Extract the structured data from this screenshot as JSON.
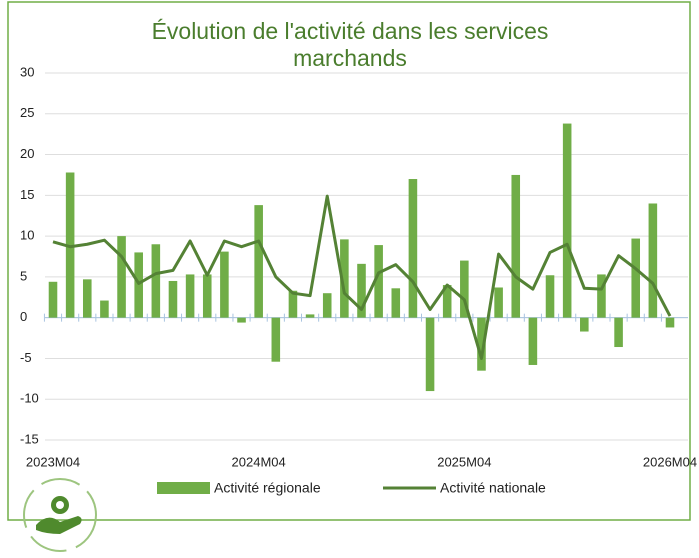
{
  "chart_data": {
    "type": "bar_line",
    "title": "Évolution de l'activité dans les services marchands",
    "categories": [
      "2023M04",
      null,
      null,
      null,
      null,
      null,
      null,
      null,
      null,
      null,
      null,
      null,
      "2024M04",
      null,
      null,
      null,
      null,
      null,
      null,
      null,
      null,
      null,
      null,
      null,
      "2025M04",
      null,
      null,
      null,
      null,
      null,
      null,
      null,
      null,
      null,
      null,
      null,
      "2026M04"
    ],
    "series": [
      {
        "name": "Activité régionale",
        "type": "bar",
        "color": "#70ad47",
        "values": [
          4.4,
          17.8,
          4.7,
          2.1,
          10.0,
          8.0,
          9.0,
          4.5,
          5.3,
          5.3,
          8.1,
          -0.6,
          13.8,
          -5.4,
          3.3,
          0.4,
          3.0,
          9.6,
          6.6,
          8.9,
          3.6,
          17.0,
          -9.0,
          4.0,
          7.0,
          -6.5,
          3.7,
          17.5,
          -5.8,
          5.2,
          23.8,
          -1.7,
          5.3,
          -3.6,
          9.7,
          14.0,
          -1.2
        ]
      },
      {
        "name": "Activité nationale",
        "type": "line",
        "color": "#548235",
        "values": [
          9.3,
          8.7,
          9.0,
          9.5,
          7.5,
          4.2,
          5.4,
          5.8,
          9.4,
          5.2,
          9.4,
          8.7,
          9.4,
          5.0,
          3.0,
          2.7,
          14.9,
          3.0,
          1.0,
          5.5,
          6.5,
          4.4,
          1.0,
          4.0,
          2.2,
          -5.0,
          7.8,
          5.0,
          3.5,
          8.0,
          9.0,
          3.6,
          3.5,
          7.6,
          6.0,
          4.2,
          0.2
        ]
      }
    ],
    "ylim": [
      -15,
      30
    ],
    "yticks": [
      -15,
      -10,
      -5,
      0,
      5,
      10,
      15,
      20,
      25,
      30
    ],
    "grid": true,
    "legend": "bottom"
  }
}
